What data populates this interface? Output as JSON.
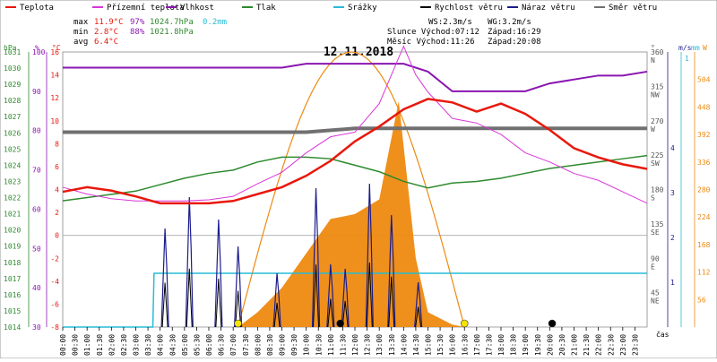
{
  "chart_data": {
    "type": "line",
    "title": "12.11.2018",
    "legend": [
      {
        "label": "Teplota",
        "color": "#e8180c"
      },
      {
        "label": "Přízemní teplota",
        "color": "#d936d9"
      },
      {
        "label": "Vlhkost",
        "color": "#8a16b0"
      },
      {
        "label": "Tlak",
        "color": "#2e8a2e"
      },
      {
        "label": "Srážky",
        "color": "#27bcd6"
      },
      {
        "label": "Rychlost větru",
        "color": "#000000"
      },
      {
        "label": "Náraz větru",
        "color": "#1c1c8c"
      },
      {
        "label": "Směr větru",
        "color": "#707070"
      }
    ],
    "stats": {
      "max_label": "max",
      "max_temp": "11.9°C",
      "max_hum": "97%",
      "max_press": "1024.7hPa",
      "rain": "0.2mm",
      "min_label": "min",
      "min_temp": "2.8°C",
      "min_hum": "88%",
      "min_press": "1021.8hPa",
      "avg_label": "avg",
      "avg_temp": "6.4°C"
    },
    "info": {
      "ws": "WS:2.3m/s",
      "wg": "WG:3.2m/s",
      "sun": "Slunce Východ:07:12",
      "sun_set": "Západ:16:29",
      "moon": "Měsíc  Východ:11:26",
      "moon_set": "Západ:20:08"
    },
    "axis_units": {
      "hpa": "hPa",
      "pct": "%",
      "degc": "°C",
      "deg": "°",
      "ms": "m/s",
      "mm": "mm",
      "w": "W",
      "cas": "čas"
    },
    "x_ticks": [
      "00:00",
      "00:30",
      "01:00",
      "01:30",
      "02:00",
      "02:30",
      "03:00",
      "03:30",
      "04:00",
      "04:30",
      "05:00",
      "05:30",
      "06:00",
      "06:30",
      "07:00",
      "07:30",
      "08:00",
      "08:30",
      "09:00",
      "09:30",
      "10:00",
      "10:30",
      "11:00",
      "11:30",
      "12:00",
      "12:30",
      "13:00",
      "13:30",
      "14:00",
      "14:30",
      "15:00",
      "15:30",
      "16:00",
      "16:30",
      "17:00",
      "17:30",
      "18:00",
      "18:30",
      "19:00",
      "19:30",
      "20:00",
      "20:30",
      "21:00",
      "21:30",
      "22:00",
      "22:30",
      "23:00",
      "23:30"
    ],
    "axes": {
      "pressure_hpa": {
        "min": 1014,
        "max": 1031,
        "ticks": [
          1014,
          1015,
          1016,
          1017,
          1018,
          1019,
          1020,
          1021,
          1022,
          1023,
          1024,
          1025,
          1026,
          1027,
          1028,
          1029,
          1030,
          1031
        ]
      },
      "humidity_pct": {
        "min": 30,
        "max": 100,
        "ticks": [
          30,
          40,
          50,
          60,
          70,
          80,
          90,
          100
        ]
      },
      "temperature_c": {
        "min": -8,
        "max": 16,
        "ticks": [
          -8,
          -6,
          -4,
          -2,
          0,
          2,
          4,
          6,
          8,
          10,
          12,
          14,
          16
        ]
      },
      "direction_deg": {
        "ticks": [
          "45",
          "90",
          "135",
          "180",
          "225",
          "270",
          "315",
          "360"
        ],
        "names": [
          "NE",
          "E",
          "SE",
          "S",
          "SW",
          "W",
          "NW",
          "N"
        ]
      },
      "wind_ms": {
        "ticks": [
          "1",
          "2",
          "3",
          "4"
        ]
      },
      "rain_mm": {
        "ticks": [
          "1"
        ]
      },
      "solar_w": {
        "min": 0,
        "max": 560,
        "ticks": [
          56,
          112,
          168,
          224,
          280,
          336,
          392,
          448,
          504
        ]
      }
    },
    "series": [
      {
        "name": "Teplota",
        "unit": "°C",
        "x": [
          0,
          1,
          2,
          3,
          4,
          5,
          6,
          7,
          8,
          9,
          10,
          11,
          12,
          13,
          14,
          15,
          16,
          17,
          18,
          19,
          20,
          21,
          22,
          23,
          24
        ],
        "values": [
          3.8,
          4.2,
          3.9,
          3.4,
          2.8,
          2.8,
          2.8,
          3.0,
          3.6,
          4.2,
          5.2,
          6.5,
          8.2,
          9.5,
          11.0,
          11.9,
          11.6,
          10.8,
          11.5,
          10.6,
          9.2,
          7.6,
          6.8,
          6.2,
          5.8
        ]
      },
      {
        "name": "Přízemní teplota",
        "unit": "°C",
        "x": [
          0,
          1,
          2,
          3,
          4,
          5,
          6,
          7,
          8,
          9,
          10,
          11,
          12,
          13,
          14,
          14.5,
          15,
          16,
          17,
          18,
          19,
          20,
          21,
          22,
          23,
          24
        ],
        "values": [
          4.2,
          3.6,
          3.2,
          3.0,
          3.0,
          3.0,
          3.1,
          3.4,
          4.5,
          5.5,
          7.2,
          8.6,
          9.0,
          11.5,
          16.5,
          14.0,
          12.5,
          10.2,
          9.8,
          8.8,
          7.2,
          6.4,
          5.4,
          4.8,
          3.8,
          2.8
        ]
      },
      {
        "name": "Vlhkost",
        "unit": "%",
        "x": [
          0,
          1,
          2,
          3,
          4,
          5,
          6,
          7,
          8,
          9,
          10,
          11,
          12,
          13,
          14,
          15,
          16,
          17,
          18,
          19,
          20,
          21,
          22,
          23,
          24
        ],
        "values": [
          96,
          96,
          96,
          96,
          96,
          96,
          96,
          96,
          96,
          96,
          97,
          97,
          97,
          97,
          97,
          95,
          90,
          90,
          90,
          90,
          92,
          93,
          94,
          94,
          95
        ]
      },
      {
        "name": "Tlak",
        "unit": "hPa",
        "x": [
          0,
          1,
          2,
          3,
          4,
          5,
          6,
          7,
          8,
          9,
          10,
          11,
          12,
          13,
          14,
          15,
          16,
          17,
          18,
          19,
          20,
          21,
          22,
          23,
          24
        ],
        "values": [
          1021.8,
          1022.0,
          1022.2,
          1022.4,
          1022.8,
          1023.2,
          1023.5,
          1023.7,
          1024.2,
          1024.5,
          1024.5,
          1024.4,
          1024.0,
          1023.6,
          1023.0,
          1022.6,
          1022.9,
          1023.0,
          1023.2,
          1023.5,
          1023.8,
          1024.0,
          1024.2,
          1024.4,
          1024.6
        ]
      },
      {
        "name": "Směr větru",
        "unit": "°",
        "x": [
          0,
          2,
          4,
          6,
          8,
          10,
          12,
          14,
          16,
          18,
          20,
          22,
          24
        ],
        "values": [
          255,
          255,
          255,
          255,
          255,
          255,
          260,
          260,
          260,
          260,
          260,
          260,
          260
        ]
      },
      {
        "name": "Srážky",
        "unit": "mm",
        "x": [
          0,
          3.7,
          3.75,
          24
        ],
        "values": [
          0,
          0,
          0.2,
          0.2
        ]
      }
    ],
    "solar": {
      "x": [
        7.2,
        8,
        9,
        10,
        11,
        12,
        13,
        13.8,
        14.5,
        15,
        16,
        16.5
      ],
      "values": [
        0,
        30,
        80,
        150,
        220,
        230,
        260,
        460,
        140,
        30,
        5,
        0
      ]
    },
    "sun_arc": {
      "rise_hour": 7.2,
      "set_hour": 16.5,
      "peak_w": 560
    },
    "gust_events": [
      {
        "h": 4.2,
        "v": 2.2
      },
      {
        "h": 5.2,
        "v": 2.9
      },
      {
        "h": 6.4,
        "v": 2.4
      },
      {
        "h": 7.2,
        "v": 1.8
      },
      {
        "h": 8.8,
        "v": 1.2
      },
      {
        "h": 10.4,
        "v": 3.1
      },
      {
        "h": 11.0,
        "v": 1.4
      },
      {
        "h": 11.6,
        "v": 1.3
      },
      {
        "h": 12.6,
        "v": 3.2
      },
      {
        "h": 13.5,
        "v": 2.5
      },
      {
        "h": 14.6,
        "v": 1.0
      }
    ],
    "markers": {
      "sunrise_h": 7.2,
      "sunset_h": 16.5,
      "moonrise_h": 11.4,
      "moonset_h": 20.1
    }
  }
}
